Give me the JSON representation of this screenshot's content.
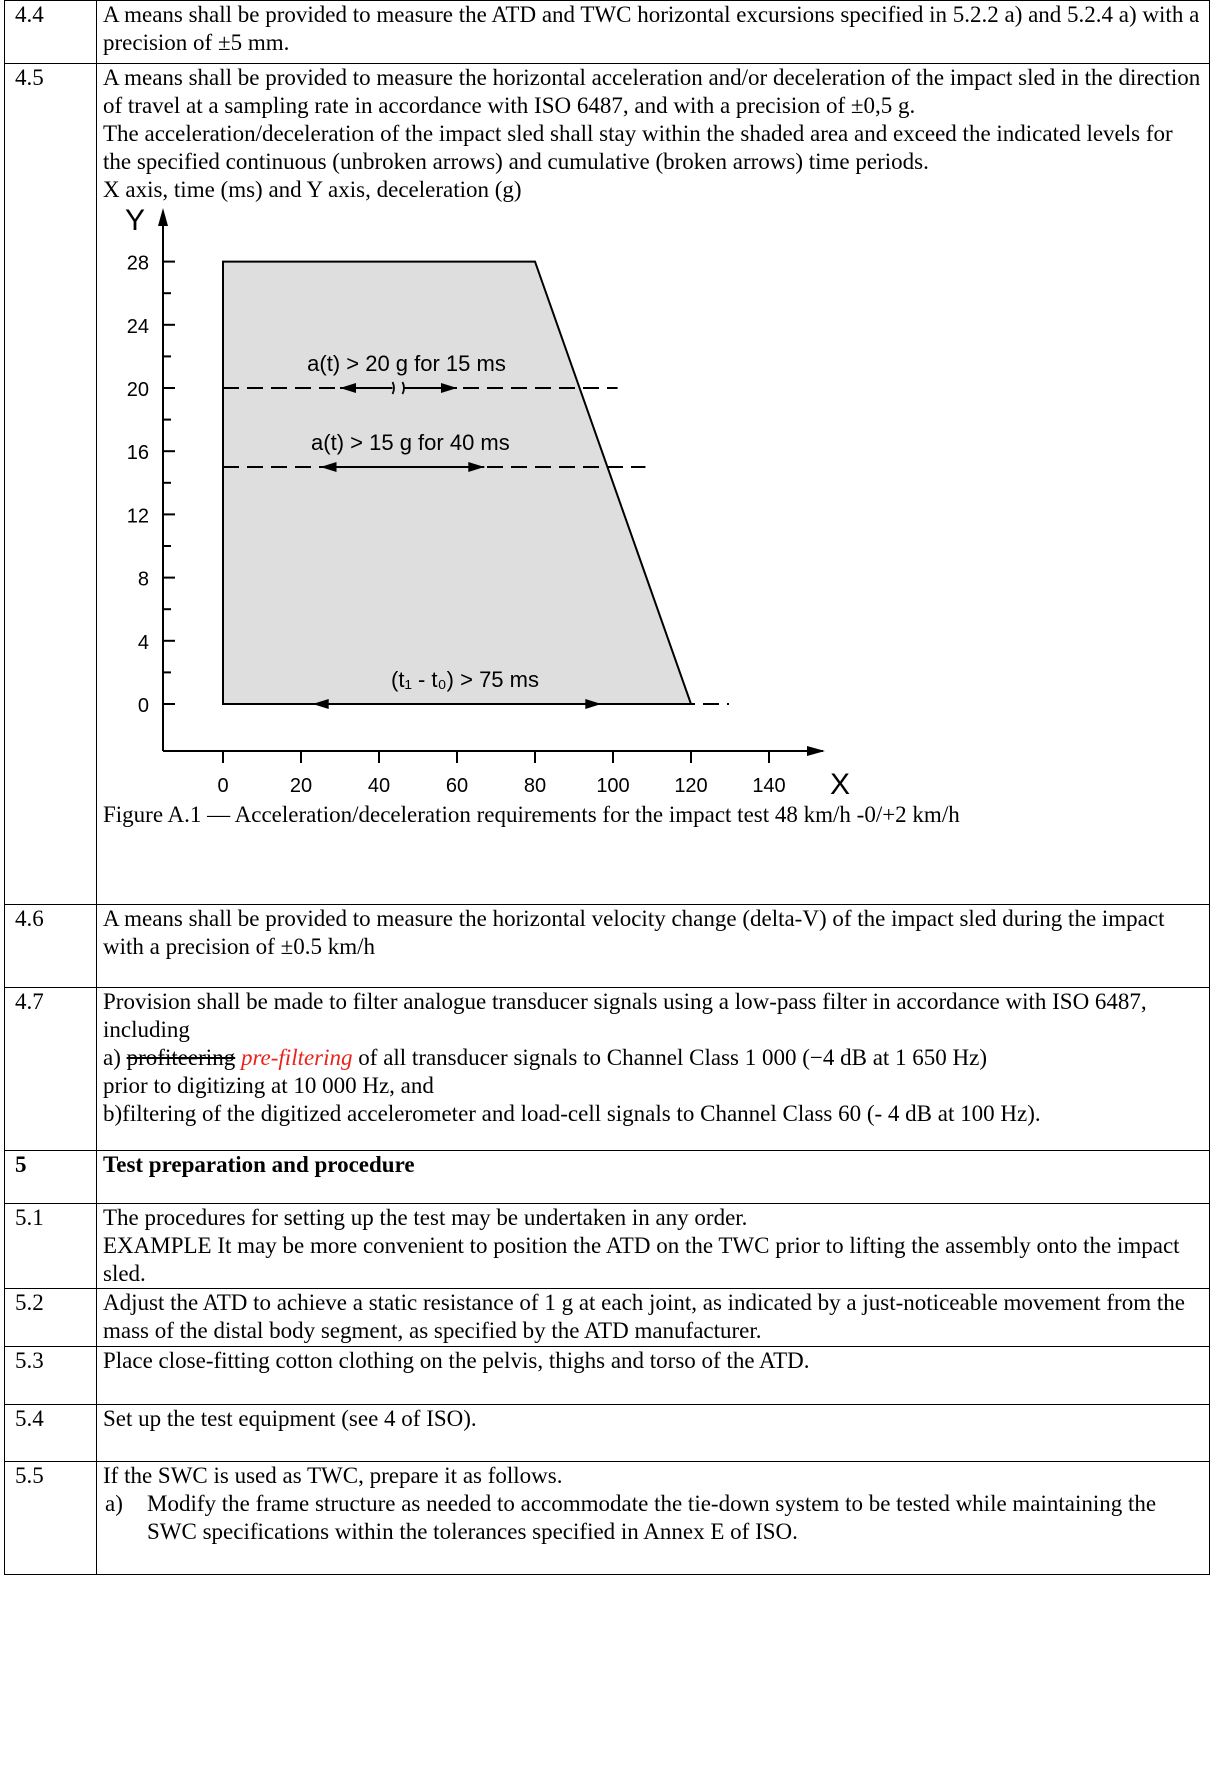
{
  "rows": [
    {
      "num": "4.4",
      "lines": [
        "A means shall be provided to measure the ATD and TWC horizontal excursions specified in 5.2.2 a) and 5.2.4 a) with a precision of ±5 mm."
      ]
    },
    {
      "num": "4.5",
      "lines": [
        "A means shall be provided to measure the horizontal acceleration and/or deceleration of the impact sled in the direction of travel at a sampling rate in accordance with ISO 6487, and with a precision of ±0,5 g.",
        "The acceleration/deceleration of the impact sled shall stay within the shaded area and exceed the indicated levels for the specified continuous (unbroken arrows) and cumulative (broken arrows) time periods.",
        "X axis, time (ms) and Y axis, deceleration (g)"
      ]
    },
    {
      "num": "4.6",
      "lines": [
        "A means shall be provided to measure the horizontal velocity change (delta-V) of the impact sled during the impact with a precision of ±0.5 km/h"
      ]
    },
    {
      "num": "4.7",
      "lines": [
        "Provision shall be made to filter analogue transducer signals using a low-pass filter in accordance with ISO 6487, including",
        "prior to digitizing at 10 000 Hz, and",
        "b)filtering of the digitized accelerometer and load-cell signals to Channel Class 60 (- 4 dB at 100 Hz)."
      ],
      "a_prefix": "a)",
      "a_struck": "profiteering",
      "a_inserted": "pre-filtering",
      "a_rest": "of all transducer signals to Channel Class 1 000 (−4 dB at 1 650 Hz)"
    },
    {
      "num": "5",
      "lines": [
        "Test preparation and procedure"
      ]
    },
    {
      "num": "5.1",
      "lines": [
        "The procedures for setting up the test may be undertaken in any order.",
        "EXAMPLE It may be more convenient to position the ATD on the TWC prior to lifting the assembly onto the impact sled."
      ]
    },
    {
      "num": "5.2",
      "lines": [
        "Adjust the ATD to achieve a static resistance of 1 g at each joint, as indicated by a just-noticeable movement from the mass of the distal body segment, as specified by the ATD manufacturer."
      ]
    },
    {
      "num": "5.3",
      "lines": [
        "Place close-fitting cotton clothing on the pelvis, thighs and torso of the ATD."
      ]
    },
    {
      "num": "5.4",
      "lines": [
        "Set up the test equipment (see 4 of ISO)."
      ]
    },
    {
      "num": "5.5",
      "lines": [
        "If the SWC is used as TWC, prepare it as follows."
      ],
      "list": [
        {
          "label": "a)",
          "text": "Modify the frame structure as needed to accommodate the tie-down system to be tested while maintaining the SWC specifications within the tolerances specified in Annex E of ISO."
        }
      ]
    }
  ],
  "figure_caption": "Figure A.1 — Acceleration/deceleration requirements for the impact test 48 km/h -0/+2 km/h",
  "chart_data": {
    "type": "area",
    "xlabel": "X",
    "ylabel": "Y",
    "xlim": [
      0,
      140
    ],
    "ylim": [
      0,
      28
    ],
    "x_ticks": [
      0,
      20,
      40,
      60,
      80,
      100,
      120,
      140
    ],
    "y_ticks": [
      0,
      4,
      8,
      12,
      16,
      20,
      24,
      28
    ],
    "shaded_region": [
      [
        0,
        0
      ],
      [
        0,
        28
      ],
      [
        80,
        28
      ],
      [
        120,
        0
      ]
    ],
    "shade_color": "#dedede",
    "annotations": [
      {
        "level": 20,
        "text": "a(t) > 20 g for 15 ms",
        "arrow": "broken",
        "from_ms": 30,
        "to_ms": 60
      },
      {
        "level": 15,
        "text": "a(t) > 15 g for 40 ms",
        "arrow": "unbroken",
        "from_ms": 25,
        "to_ms": 67
      },
      {
        "level": 0,
        "text": "(t₁ - t₀) > 75 ms",
        "arrow": "unbroken",
        "from_ms": 23,
        "to_ms": 97
      }
    ]
  }
}
